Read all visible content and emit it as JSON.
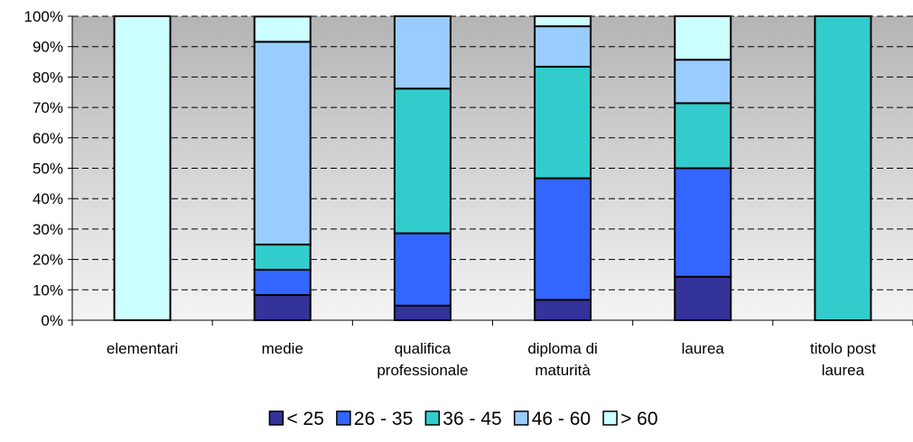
{
  "chart_data": {
    "type": "bar",
    "stacked": true,
    "percent_stacked": true,
    "categories": [
      [
        "elementari"
      ],
      [
        "medie"
      ],
      [
        "qualifica",
        "professionale"
      ],
      [
        "diploma di",
        "maturità"
      ],
      [
        "laurea"
      ],
      [
        "titolo post",
        "laurea"
      ]
    ],
    "series": [
      {
        "name": "< 25",
        "color": "#333399",
        "values": [
          0,
          8.3,
          4.8,
          6.7,
          14.3,
          0
        ]
      },
      {
        "name": "26 - 35",
        "color": "#3366FF",
        "values": [
          0,
          8.3,
          23.8,
          40.0,
          35.7,
          0
        ]
      },
      {
        "name": "36 - 45",
        "color": "#33CCCC",
        "values": [
          0,
          8.3,
          47.6,
          36.7,
          21.4,
          100
        ]
      },
      {
        "name": "46 - 60",
        "color": "#99CCFF",
        "values": [
          0,
          66.7,
          23.8,
          13.3,
          14.3,
          0
        ]
      },
      {
        "name": "> 60",
        "color": "#CCFFFF",
        "values": [
          100,
          8.3,
          0,
          3.3,
          14.3,
          0
        ]
      }
    ],
    "yticks": [
      "0%",
      "10%",
      "20%",
      "30%",
      "40%",
      "50%",
      "60%",
      "70%",
      "80%",
      "90%",
      "100%"
    ],
    "ylim": [
      0,
      100
    ],
    "grid": "dashed horizontal",
    "legend": "bottom"
  }
}
